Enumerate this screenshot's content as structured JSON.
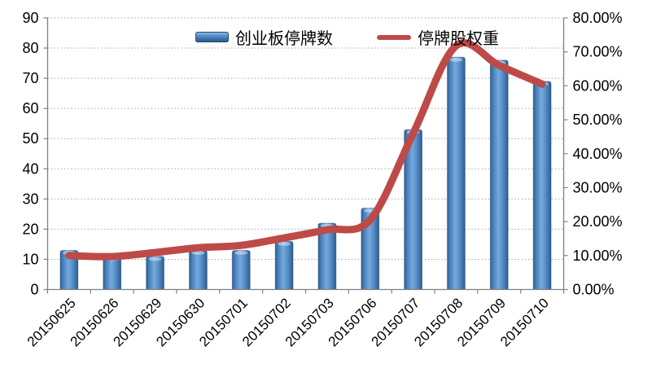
{
  "chart_data": {
    "type": "combo-bar-line",
    "categories": [
      "20150625",
      "20150626",
      "20150629",
      "20150630",
      "20150701",
      "20150702",
      "20150703",
      "20150706",
      "20150707",
      "20150708",
      "20150709",
      "20150710"
    ],
    "series": [
      {
        "name": "创业板停牌数",
        "type": "bar",
        "axis": "left",
        "values": [
          13,
          11,
          11,
          13,
          13,
          16,
          22,
          27,
          53,
          77,
          76,
          69
        ]
      },
      {
        "name": "停牌股权重",
        "type": "line",
        "axis": "right",
        "unit": "%",
        "values": [
          10.0,
          9.7,
          10.9,
          12.3,
          13.0,
          15.2,
          17.6,
          20.5,
          46.0,
          71.8,
          66.0,
          60.5
        ]
      }
    ],
    "left_axis": {
      "min": 0,
      "max": 90,
      "step": 10,
      "tick_labels": [
        "0",
        "10",
        "20",
        "30",
        "40",
        "50",
        "60",
        "70",
        "80",
        "90"
      ]
    },
    "right_axis": {
      "min": 0,
      "max": 80,
      "step": 10,
      "tick_labels": [
        "0.00%",
        "10.00%",
        "20.00%",
        "30.00%",
        "40.00%",
        "50.00%",
        "60.00%",
        "70.00%",
        "80.00%"
      ]
    },
    "grid": "dotted-horizontal",
    "legend_position": "top-center",
    "x_label_rotation": -45
  },
  "colors": {
    "bar_main": "#4a82ba",
    "bar_edge": "#2b5380",
    "bar_highlight": "#7fb2e2",
    "line": "#be4a47",
    "gridline": "#a6a6a6",
    "axis": "#7f7f7f",
    "text": "#000000",
    "background": "#ffffff"
  }
}
